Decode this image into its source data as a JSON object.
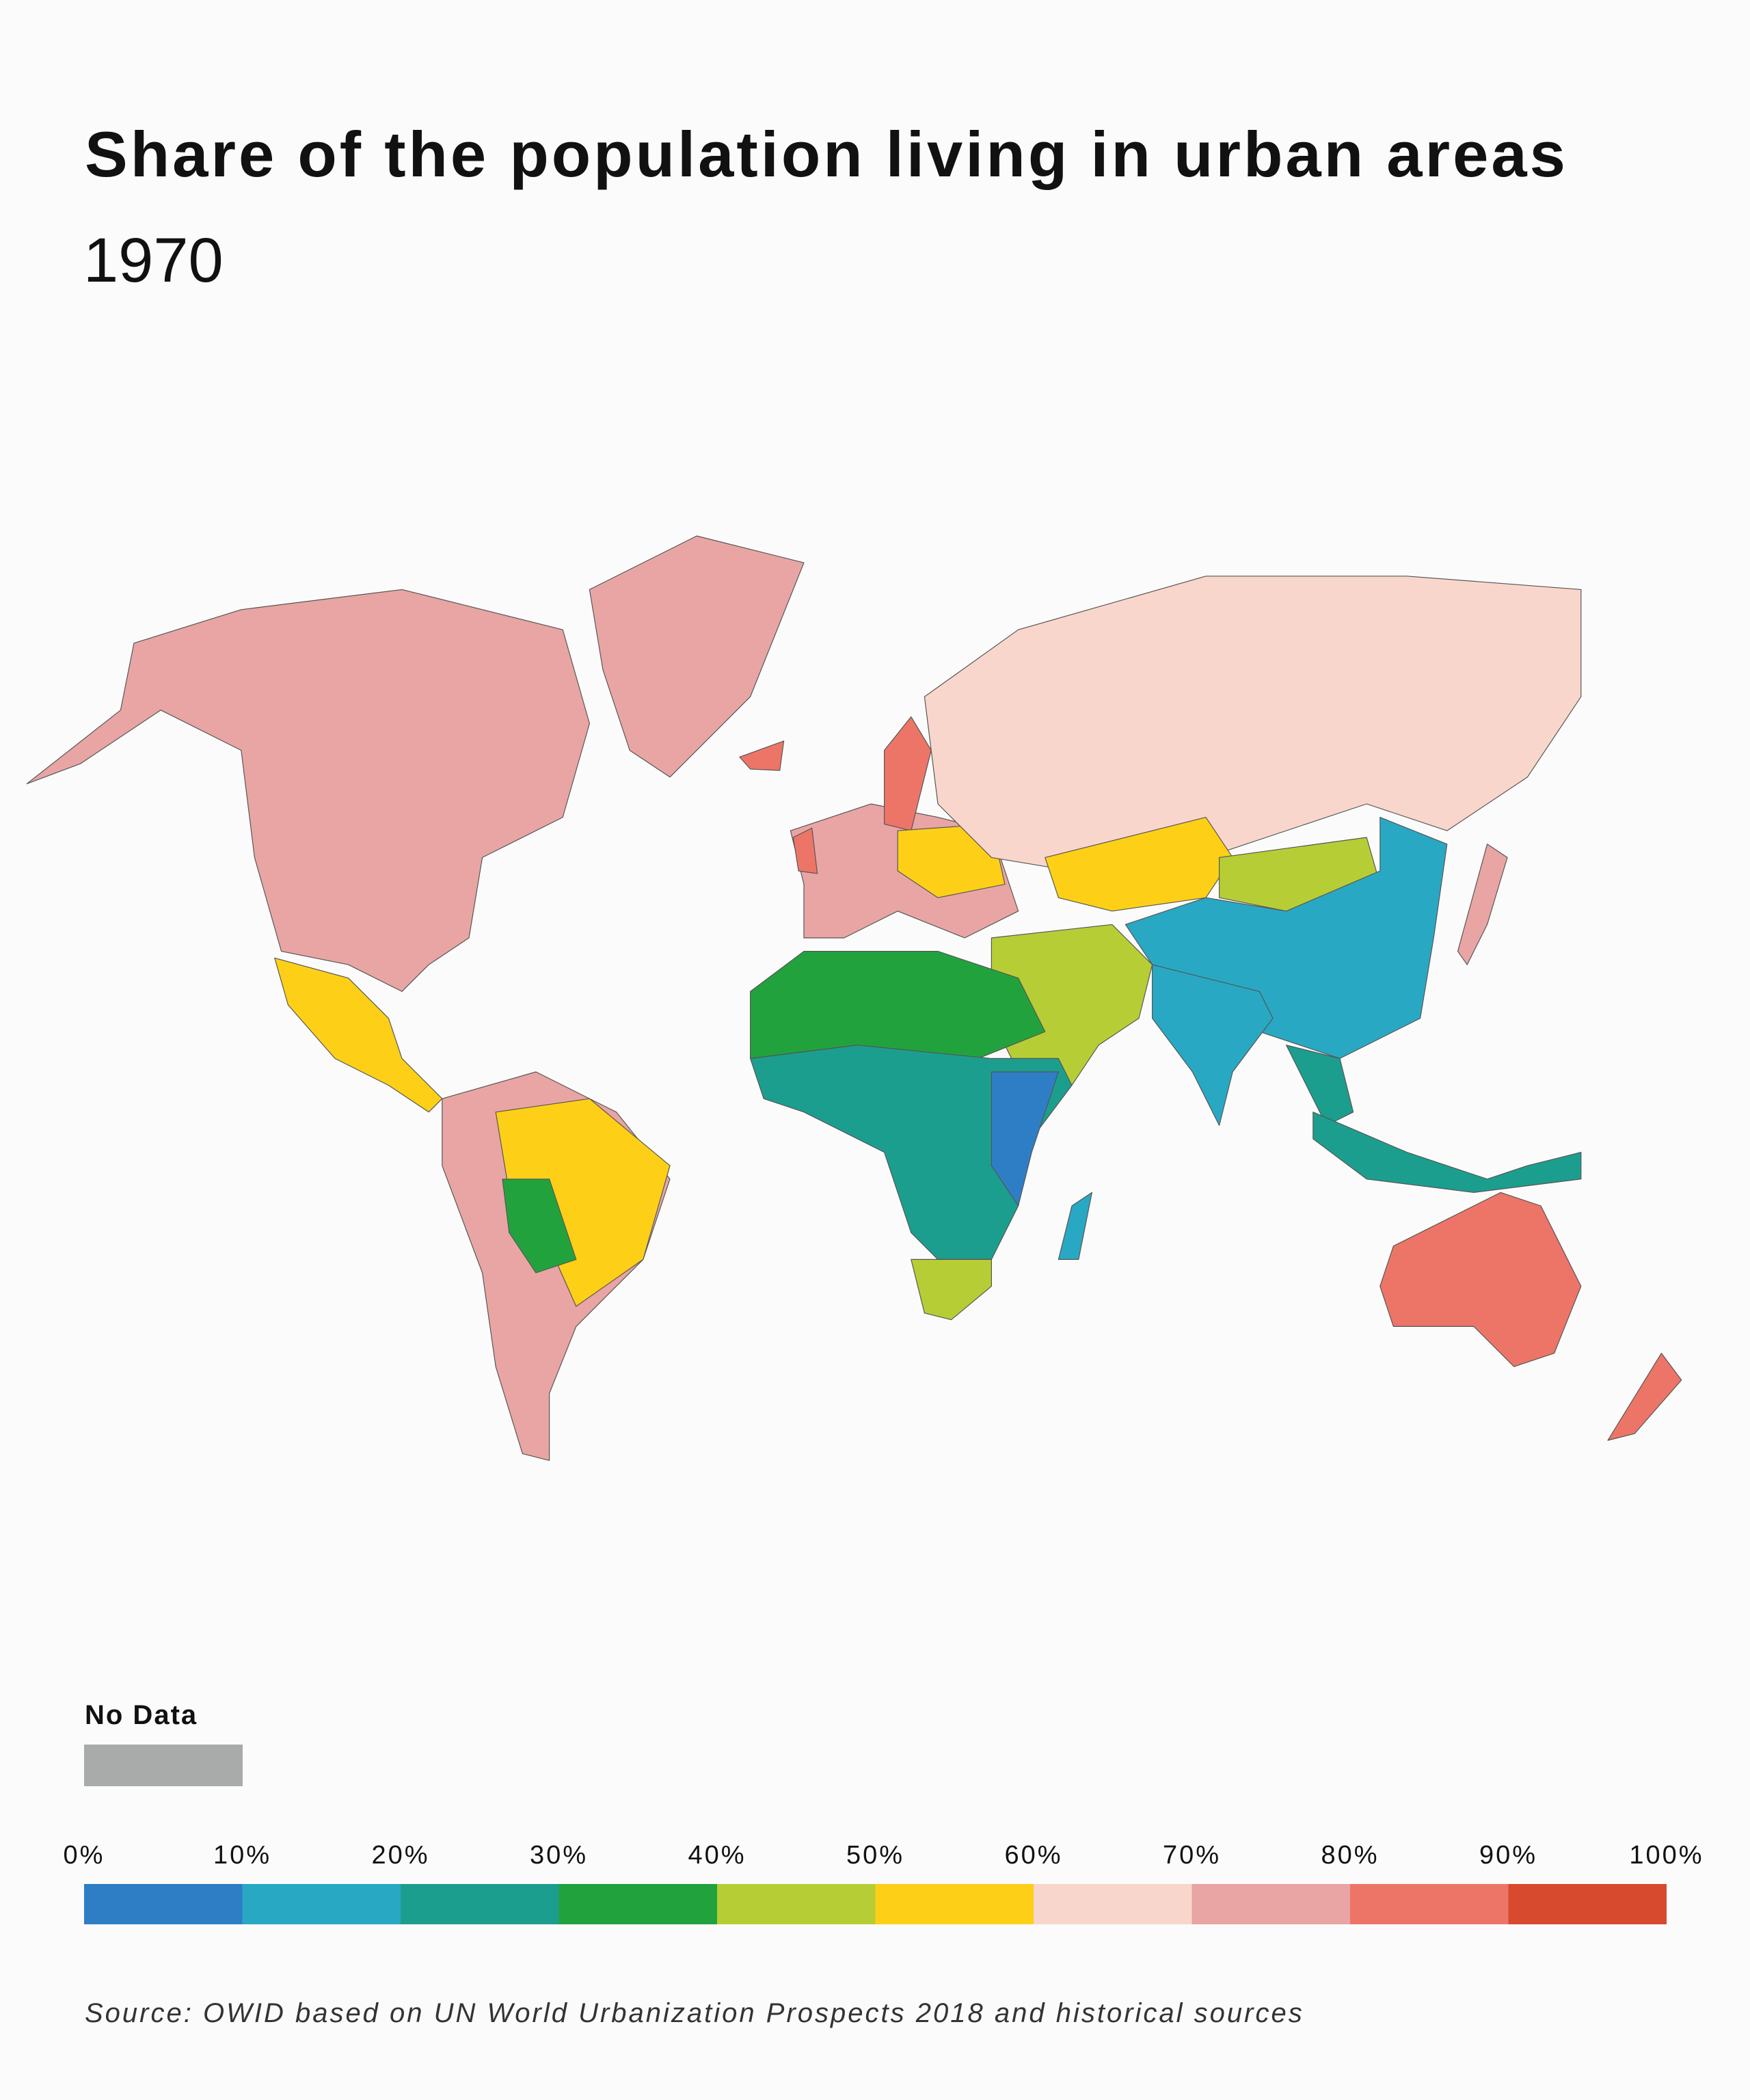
{
  "chart_data": {
    "type": "map",
    "title": "Share of the population living in urban areas",
    "subtitle": "1970",
    "source": "Source: OWID based on UN World Urbanization Prospects 2018 and historical sources",
    "no_data": {
      "label": "No Data",
      "color": "#a9abaa"
    },
    "colorbar": {
      "xlim": [
        0,
        100
      ],
      "xticks": [
        {
          "value": 0,
          "label": "0%"
        },
        {
          "value": 10,
          "label": "10%"
        },
        {
          "value": 20,
          "label": "20%"
        },
        {
          "value": 30,
          "label": "30%"
        },
        {
          "value": 40,
          "label": "40%"
        },
        {
          "value": 50,
          "label": "50%"
        },
        {
          "value": 60,
          "label": "60%"
        },
        {
          "value": 70,
          "label": "70%"
        },
        {
          "value": 80,
          "label": "80%"
        },
        {
          "value": 90,
          "label": "90%"
        },
        {
          "value": 100,
          "label": "100%"
        }
      ],
      "colors": [
        "#2e7ec6",
        "#29a8c4",
        "#1c9e8f",
        "#22a23d",
        "#b7cd35",
        "#fdd017",
        "#f9d6cb",
        "#e8a5a4",
        "#ed7568",
        "#d84a2e"
      ]
    }
  }
}
